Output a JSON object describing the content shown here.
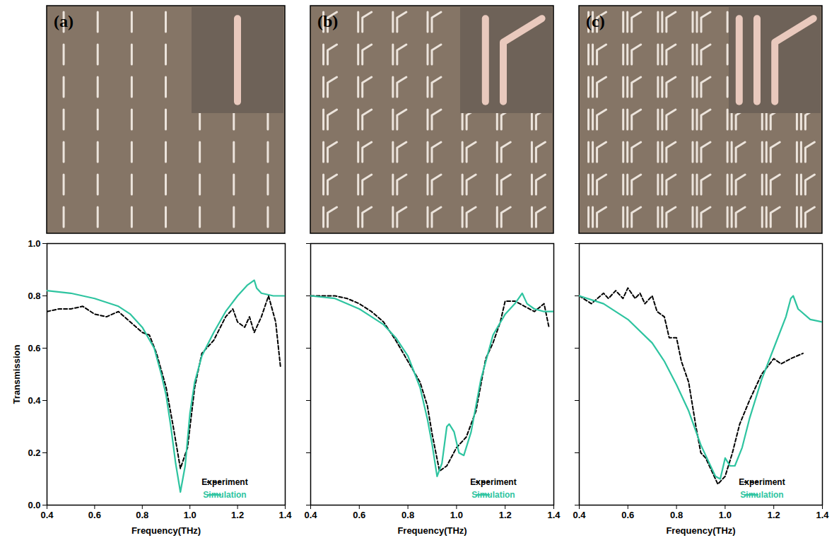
{
  "chart_data": [
    {
      "type": "line",
      "label": "(a)",
      "x_label": "Frequency(THz)",
      "y_label": "Transmission",
      "xlim": [
        0.4,
        1.4
      ],
      "ylim": [
        0,
        1
      ],
      "xticks": [
        0.4,
        0.6,
        0.8,
        {
          "value": 1,
          "label": "1.0"
        },
        1.2,
        1.4
      ],
      "yticks": [
        {
          "value": 0,
          "label": "0.0"
        },
        0.2,
        0.4,
        0.6,
        0.8,
        {
          "value": 1,
          "label": "1.0"
        }
      ],
      "legend": "bottom-right",
      "series": [
        {
          "name": "Experiment",
          "color": "#000000",
          "line_style": "dashed",
          "x": [
            0.4,
            0.45,
            0.5,
            0.55,
            0.6,
            0.65,
            0.7,
            0.75,
            0.8,
            0.83,
            0.86,
            0.9,
            0.93,
            0.96,
            0.99,
            1.02,
            1.05,
            1.1,
            1.15,
            1.18,
            1.2,
            1.23,
            1.25,
            1.27,
            1.3,
            1.33,
            1.36,
            1.38
          ],
          "values": [
            0.74,
            0.75,
            0.75,
            0.76,
            0.73,
            0.72,
            0.74,
            0.7,
            0.66,
            0.65,
            0.58,
            0.45,
            0.3,
            0.14,
            0.22,
            0.45,
            0.58,
            0.63,
            0.72,
            0.75,
            0.7,
            0.68,
            0.72,
            0.66,
            0.72,
            0.8,
            0.7,
            0.53
          ]
        },
        {
          "name": "Simulation",
          "color": "#2ec4a0",
          "line_style": "solid",
          "x": [
            0.4,
            0.5,
            0.6,
            0.7,
            0.75,
            0.8,
            0.85,
            0.88,
            0.9,
            0.92,
            0.94,
            0.96,
            0.98,
            1.0,
            1.02,
            1.05,
            1.1,
            1.15,
            1.2,
            1.24,
            1.27,
            1.28,
            1.3,
            1.35,
            1.4
          ],
          "values": [
            0.82,
            0.81,
            0.79,
            0.76,
            0.73,
            0.68,
            0.6,
            0.5,
            0.42,
            0.3,
            0.16,
            0.05,
            0.15,
            0.35,
            0.47,
            0.57,
            0.66,
            0.74,
            0.8,
            0.84,
            0.86,
            0.83,
            0.81,
            0.8,
            0.8
          ]
        }
      ]
    },
    {
      "type": "line",
      "label": "(b)",
      "x_label": "Frequency(THz)",
      "xlim": [
        0.4,
        1.4
      ],
      "ylim": [
        0,
        1
      ],
      "xticks": [
        0.4,
        0.6,
        0.8,
        {
          "value": 1,
          "label": "1.0"
        },
        1.2,
        1.4
      ],
      "yticks": [
        {
          "value": 0,
          "label": "0.0"
        },
        0.2,
        0.4,
        0.6,
        0.8,
        {
          "value": 1,
          "label": "1.0"
        }
      ],
      "tick_labels": "x",
      "legend": "bottom-right",
      "series": [
        {
          "name": "Experiment",
          "color": "#000000",
          "line_style": "dashed",
          "x": [
            0.4,
            0.45,
            0.5,
            0.55,
            0.6,
            0.65,
            0.7,
            0.75,
            0.8,
            0.85,
            0.88,
            0.9,
            0.93,
            0.96,
            1.0,
            1.04,
            1.08,
            1.12,
            1.15,
            1.18,
            1.2,
            1.24,
            1.28,
            1.32,
            1.36,
            1.38
          ],
          "values": [
            0.8,
            0.8,
            0.8,
            0.79,
            0.77,
            0.74,
            0.7,
            0.63,
            0.55,
            0.47,
            0.38,
            0.27,
            0.13,
            0.15,
            0.22,
            0.26,
            0.36,
            0.56,
            0.62,
            0.7,
            0.78,
            0.78,
            0.76,
            0.74,
            0.77,
            0.68
          ]
        },
        {
          "name": "Simulation",
          "color": "#2ec4a0",
          "line_style": "solid",
          "x": [
            0.4,
            0.5,
            0.6,
            0.7,
            0.75,
            0.8,
            0.85,
            0.88,
            0.9,
            0.92,
            0.94,
            0.96,
            0.97,
            0.99,
            1.01,
            1.03,
            1.06,
            1.1,
            1.15,
            1.2,
            1.24,
            1.27,
            1.29,
            1.32,
            1.36,
            1.4
          ],
          "values": [
            0.8,
            0.79,
            0.75,
            0.69,
            0.64,
            0.57,
            0.45,
            0.33,
            0.23,
            0.11,
            0.16,
            0.3,
            0.31,
            0.28,
            0.2,
            0.19,
            0.28,
            0.48,
            0.65,
            0.73,
            0.77,
            0.81,
            0.77,
            0.75,
            0.74,
            0.74
          ]
        }
      ]
    },
    {
      "type": "line",
      "label": "(c)",
      "x_label": "Frequency(THz)",
      "xlim": [
        0.4,
        1.4
      ],
      "ylim": [
        0,
        1
      ],
      "xticks": [
        0.4,
        0.6,
        0.8,
        {
          "value": 1,
          "label": "1.0"
        },
        1.2,
        1.4
      ],
      "yticks": [
        {
          "value": 0,
          "label": "0.0"
        },
        0.2,
        0.4,
        0.6,
        0.8,
        {
          "value": 1,
          "label": "1.0"
        }
      ],
      "tick_labels": "x",
      "legend": "bottom-right",
      "series": [
        {
          "name": "Experiment",
          "color": "#000000",
          "line_style": "dashed",
          "x": [
            0.4,
            0.45,
            0.5,
            0.52,
            0.55,
            0.58,
            0.6,
            0.63,
            0.65,
            0.67,
            0.7,
            0.72,
            0.75,
            0.77,
            0.8,
            0.82,
            0.85,
            0.88,
            0.9,
            0.92,
            0.95,
            0.97,
            1.0,
            1.03,
            1.06,
            1.1,
            1.15,
            1.2,
            1.23,
            1.27,
            1.32
          ],
          "values": [
            0.8,
            0.77,
            0.81,
            0.79,
            0.82,
            0.79,
            0.83,
            0.79,
            0.81,
            0.77,
            0.8,
            0.74,
            0.72,
            0.64,
            0.64,
            0.55,
            0.47,
            0.3,
            0.2,
            0.18,
            0.12,
            0.08,
            0.11,
            0.2,
            0.31,
            0.4,
            0.5,
            0.56,
            0.54,
            0.56,
            0.58
          ]
        },
        {
          "name": "Simulation",
          "color": "#2ec4a0",
          "line_style": "solid",
          "x": [
            0.4,
            0.5,
            0.6,
            0.7,
            0.75,
            0.8,
            0.85,
            0.9,
            0.93,
            0.96,
            0.98,
            1.0,
            1.02,
            1.04,
            1.07,
            1.1,
            1.15,
            1.2,
            1.25,
            1.27,
            1.28,
            1.3,
            1.35,
            1.4
          ],
          "values": [
            0.8,
            0.77,
            0.71,
            0.62,
            0.55,
            0.46,
            0.36,
            0.23,
            0.17,
            0.11,
            0.1,
            0.18,
            0.15,
            0.15,
            0.22,
            0.33,
            0.48,
            0.6,
            0.72,
            0.79,
            0.8,
            0.75,
            0.71,
            0.7
          ]
        }
      ]
    }
  ]
}
